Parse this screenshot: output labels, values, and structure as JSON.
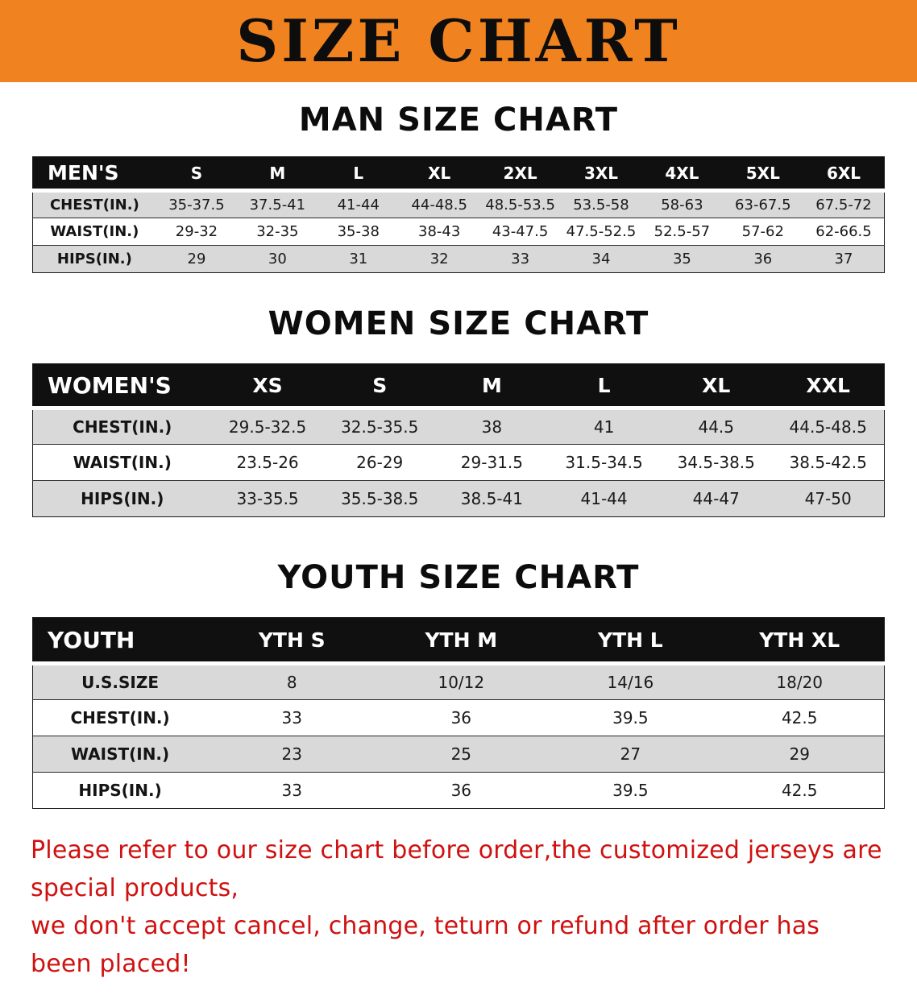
{
  "banner": {
    "title": "SIZE CHART",
    "bg_color": "#f0831f",
    "text_color": "#0d0d0d"
  },
  "sections": {
    "men": {
      "heading": "MAN SIZE CHART",
      "table": {
        "header": [
          "MEN'S",
          "S",
          "M",
          "L",
          "XL",
          "2XL",
          "3XL",
          "4XL",
          "5XL",
          "6XL"
        ],
        "rows": [
          {
            "label": "CHEST(IN.)",
            "values": [
              "35-37.5",
              "37.5-41",
              "41-44",
              "44-48.5",
              "48.5-53.5",
              "53.5-58",
              "58-63",
              "63-67.5",
              "67.5-72"
            ]
          },
          {
            "label": "WAIST(IN.)",
            "values": [
              "29-32",
              "32-35",
              "35-38",
              "38-43",
              "43-47.5",
              "47.5-52.5",
              "52.5-57",
              "57-62",
              "62-66.5"
            ]
          },
          {
            "label": "HIPS(IN.)",
            "values": [
              "29",
              "30",
              "31",
              "32",
              "33",
              "34",
              "35",
              "36",
              "37"
            ]
          }
        ]
      }
    },
    "women": {
      "heading": "WOMEN SIZE CHART",
      "table": {
        "header": [
          "WOMEN'S",
          "XS",
          "S",
          "M",
          "L",
          "XL",
          "XXL"
        ],
        "rows": [
          {
            "label": "CHEST(IN.)",
            "values": [
              "29.5-32.5",
              "32.5-35.5",
              "38",
              "41",
              "44.5",
              "44.5-48.5"
            ]
          },
          {
            "label": "WAIST(IN.)",
            "values": [
              "23.5-26",
              "26-29",
              "29-31.5",
              "31.5-34.5",
              "34.5-38.5",
              "38.5-42.5"
            ]
          },
          {
            "label": "HIPS(IN.)",
            "values": [
              "33-35.5",
              "35.5-38.5",
              "38.5-41",
              "41-44",
              "44-47",
              "47-50"
            ]
          }
        ]
      }
    },
    "youth": {
      "heading": "YOUTH SIZE CHART",
      "table": {
        "header": [
          "YOUTH",
          "YTH S",
          "YTH M",
          "YTH L",
          "YTH XL"
        ],
        "rows": [
          {
            "label": "U.S.SIZE",
            "values": [
              "8",
              "10/12",
              "14/16",
              "18/20"
            ]
          },
          {
            "label": "CHEST(IN.)",
            "values": [
              "33",
              "36",
              "39.5",
              "42.5"
            ]
          },
          {
            "label": "WAIST(IN.)",
            "values": [
              "23",
              "25",
              "27",
              "29"
            ]
          },
          {
            "label": "HIPS(IN.)",
            "values": [
              "33",
              "36",
              "39.5",
              "42.5"
            ]
          }
        ]
      }
    }
  },
  "disclaimer": {
    "line1": "Please refer to our size chart before order,the customized jerseys are special products,",
    "line2": "we don't accept cancel, change, teturn or refund after order has been placed!",
    "text_color": "#cf1110"
  }
}
